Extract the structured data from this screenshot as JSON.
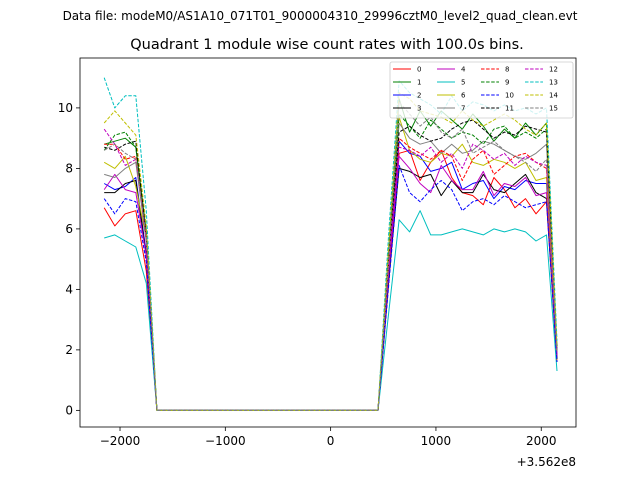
{
  "chart_data": {
    "type": "line",
    "suptitle": "Data file: modeM0/AS1A10_071T01_9000004310_29996cztM0_level2_quad_clean.evt",
    "title": "Quadrant 1 module wise count rates with 100.0s bins.",
    "xlabel": "",
    "ylabel": "",
    "x_offset_label": "+3.562e8",
    "xlim": [
      -2380,
      2330
    ],
    "ylim": [
      -0.55,
      11.65
    ],
    "xticks": [
      -2000,
      -1000,
      0,
      1000,
      2000
    ],
    "xtick_labels": [
      "−2000",
      "−1000",
      "0",
      "1000",
      "2000"
    ],
    "yticks": [
      0,
      2,
      4,
      6,
      8,
      10
    ],
    "ytick_labels": [
      "0",
      "2",
      "4",
      "6",
      "8",
      "10"
    ],
    "grid": false,
    "legend_position": "top-right",
    "x": [
      -2150,
      -2050,
      -1950,
      -1850,
      -1750,
      -1650,
      -1550,
      -1450,
      -1350,
      -1250,
      -1150,
      -1050,
      -950,
      -850,
      -750,
      -650,
      -550,
      -450,
      -350,
      -250,
      -150,
      -50,
      50,
      150,
      250,
      350,
      450,
      550,
      650,
      750,
      850,
      950,
      1050,
      1150,
      1250,
      1350,
      1450,
      1550,
      1650,
      1750,
      1850,
      1950,
      2050,
      2150
    ],
    "series": [
      {
        "name": "0",
        "color": "#ff0000",
        "dash": "solid",
        "values": [
          6.7,
          6.1,
          6.5,
          6.6,
          4.6,
          0,
          0,
          0,
          0,
          0,
          0,
          0,
          0,
          0,
          0,
          0,
          0,
          0,
          0,
          0,
          0,
          0,
          0,
          0,
          0,
          0,
          0,
          4.2,
          8.5,
          8.6,
          7.6,
          8.2,
          8.6,
          7.7,
          7.2,
          7.1,
          6.8,
          7.7,
          7.3,
          6.7,
          7.0,
          6.5,
          6.9,
          1.6
        ]
      },
      {
        "name": "1",
        "color": "#008000",
        "dash": "solid",
        "values": [
          8.8,
          8.9,
          9.0,
          8.7,
          5.8,
          0,
          0,
          0,
          0,
          0,
          0,
          0,
          0,
          0,
          0,
          0,
          0,
          0,
          0,
          0,
          0,
          0,
          0,
          0,
          0,
          0,
          0,
          5.2,
          10.3,
          9.2,
          9.9,
          9.4,
          9.9,
          9.6,
          9.3,
          9.8,
          9.4,
          8.9,
          9.3,
          9.0,
          9.5,
          9.1,
          9.5,
          2.0
        ]
      },
      {
        "name": "2",
        "color": "#0000ff",
        "dash": "solid",
        "values": [
          7.5,
          7.3,
          7.4,
          7.7,
          5.2,
          0,
          0,
          0,
          0,
          0,
          0,
          0,
          0,
          0,
          0,
          0,
          0,
          0,
          0,
          0,
          0,
          0,
          0,
          0,
          0,
          0,
          0,
          4.6,
          8.9,
          8.5,
          8.4,
          7.9,
          8.0,
          8.2,
          7.3,
          7.5,
          7.6,
          7.0,
          7.4,
          7.3,
          7.6,
          7.5,
          7.5,
          1.8
        ]
      },
      {
        "name": "3",
        "color": "#000000",
        "dash": "solid",
        "values": [
          7.2,
          7.2,
          7.5,
          7.6,
          5.1,
          0,
          0,
          0,
          0,
          0,
          0,
          0,
          0,
          0,
          0,
          0,
          0,
          0,
          0,
          0,
          0,
          0,
          0,
          0,
          0,
          0,
          0,
          4.3,
          8.0,
          7.9,
          7.7,
          7.8,
          7.1,
          7.6,
          7.2,
          7.2,
          7.8,
          7.3,
          7.2,
          7.5,
          7.8,
          7.2,
          7.0,
          1.7
        ]
      },
      {
        "name": "4",
        "color": "#bf00bf",
        "dash": "solid",
        "values": [
          7.3,
          7.8,
          7.3,
          7.2,
          5.1,
          0,
          0,
          0,
          0,
          0,
          0,
          0,
          0,
          0,
          0,
          0,
          0,
          0,
          0,
          0,
          0,
          0,
          0,
          0,
          0,
          0,
          0,
          4.5,
          8.4,
          8.0,
          7.5,
          7.2,
          8.1,
          7.6,
          7.3,
          7.3,
          7.9,
          7.1,
          7.5,
          7.4,
          7.7,
          7.1,
          7.2,
          1.8
        ]
      },
      {
        "name": "5",
        "color": "#00bfbf",
        "dash": "solid",
        "values": [
          5.7,
          5.8,
          5.6,
          5.4,
          4.2,
          0,
          0,
          0,
          0,
          0,
          0,
          0,
          0,
          0,
          0,
          0,
          0,
          0,
          0,
          0,
          0,
          0,
          0,
          0,
          0,
          0,
          0,
          3.2,
          6.3,
          5.9,
          6.6,
          5.8,
          5.8,
          5.9,
          6.0,
          5.9,
          5.8,
          6.0,
          5.9,
          6.0,
          5.9,
          5.6,
          5.8,
          1.3
        ]
      },
      {
        "name": "6",
        "color": "#bfbf00",
        "dash": "solid",
        "values": [
          8.2,
          8.0,
          8.4,
          7.4,
          5.7,
          0,
          0,
          0,
          0,
          0,
          0,
          0,
          0,
          0,
          0,
          0,
          0,
          0,
          0,
          0,
          0,
          0,
          0,
          0,
          0,
          0,
          0,
          4.9,
          9.7,
          8.6,
          8.3,
          8.2,
          8.5,
          8.4,
          8.8,
          8.2,
          8.1,
          8.3,
          8.2,
          8.0,
          8.2,
          7.6,
          7.7,
          1.9
        ]
      },
      {
        "name": "7",
        "color": "#808080",
        "dash": "solid",
        "values": [
          7.8,
          7.7,
          8.0,
          8.2,
          5.6,
          0,
          0,
          0,
          0,
          0,
          0,
          0,
          0,
          0,
          0,
          0,
          0,
          0,
          0,
          0,
          0,
          0,
          0,
          0,
          0,
          0,
          0,
          4.8,
          9.5,
          9.0,
          8.8,
          8.9,
          8.5,
          8.8,
          8.5,
          8.6,
          8.9,
          8.8,
          8.6,
          8.4,
          8.3,
          8.5,
          8.8,
          1.9
        ]
      },
      {
        "name": "8",
        "color": "#ff0000",
        "dash": "dashed",
        "values": [
          8.8,
          8.8,
          8.3,
          8.4,
          5.6,
          0,
          0,
          0,
          0,
          0,
          0,
          0,
          0,
          0,
          0,
          0,
          0,
          0,
          0,
          0,
          0,
          0,
          0,
          0,
          0,
          0,
          0,
          4.8,
          9.0,
          8.7,
          8.5,
          8.3,
          8.6,
          8.4,
          7.6,
          8.3,
          8.6,
          7.8,
          8.1,
          8.4,
          8.5,
          8.2,
          8.0,
          1.9
        ]
      },
      {
        "name": "9",
        "color": "#008000",
        "dash": "dashed",
        "values": [
          8.6,
          9.1,
          9.2,
          8.7,
          5.9,
          0,
          0,
          0,
          0,
          0,
          0,
          0,
          0,
          0,
          0,
          0,
          0,
          0,
          0,
          0,
          0,
          0,
          0,
          0,
          0,
          0,
          0,
          5.0,
          9.8,
          9.4,
          9.0,
          9.6,
          9.3,
          9.0,
          9.2,
          9.1,
          8.8,
          9.3,
          9.4,
          9.0,
          9.2,
          9.0,
          9.3,
          2.0
        ]
      },
      {
        "name": "10",
        "color": "#0000ff",
        "dash": "dashed",
        "values": [
          7.0,
          6.5,
          7.0,
          6.9,
          4.9,
          0,
          0,
          0,
          0,
          0,
          0,
          0,
          0,
          0,
          0,
          0,
          0,
          0,
          0,
          0,
          0,
          0,
          0,
          0,
          0,
          0,
          0,
          4.1,
          8.1,
          7.2,
          6.9,
          7.3,
          7.6,
          7.3,
          6.6,
          6.9,
          7.0,
          6.8,
          7.1,
          6.9,
          6.7,
          6.8,
          6.9,
          1.6
        ]
      },
      {
        "name": "11",
        "color": "#000000",
        "dash": "dashed",
        "values": [
          8.7,
          8.6,
          8.8,
          8.9,
          5.8,
          0,
          0,
          0,
          0,
          0,
          0,
          0,
          0,
          0,
          0,
          0,
          0,
          0,
          0,
          0,
          0,
          0,
          0,
          0,
          0,
          0,
          0,
          5.0,
          9.2,
          9.4,
          9.1,
          8.9,
          9.0,
          9.3,
          9.5,
          9.6,
          9.3,
          9.0,
          9.2,
          9.1,
          9.4,
          9.3,
          9.2,
          2.0
        ]
      },
      {
        "name": "12",
        "color": "#bf00bf",
        "dash": "dashed",
        "values": [
          9.3,
          8.8,
          8.1,
          8.3,
          5.7,
          0,
          0,
          0,
          0,
          0,
          0,
          0,
          0,
          0,
          0,
          0,
          0,
          0,
          0,
          0,
          0,
          0,
          0,
          0,
          0,
          0,
          0,
          4.9,
          8.7,
          8.6,
          8.4,
          8.7,
          8.2,
          8.5,
          8.0,
          8.8,
          8.6,
          8.3,
          8.5,
          8.1,
          8.4,
          8.2,
          8.1,
          1.9
        ]
      },
      {
        "name": "13",
        "color": "#00bfbf",
        "dash": "dashed",
        "values": [
          11.0,
          10.0,
          10.4,
          10.4,
          6.6,
          0,
          0,
          0,
          0,
          0,
          0,
          0,
          0,
          0,
          0,
          0,
          0,
          0,
          0,
          0,
          0,
          0,
          0,
          0,
          0,
          0,
          0,
          5.8,
          10.9,
          10.5,
          10.3,
          10.1,
          9.8,
          10.4,
          9.9,
          10.2,
          10.1,
          9.9,
          10.1,
          9.9,
          10.0,
          9.8,
          10.0,
          2.3
        ]
      },
      {
        "name": "14",
        "color": "#bfbf00",
        "dash": "dashed",
        "values": [
          9.5,
          9.9,
          9.5,
          9.1,
          6.1,
          0,
          0,
          0,
          0,
          0,
          0,
          0,
          0,
          0,
          0,
          0,
          0,
          0,
          0,
          0,
          0,
          0,
          0,
          0,
          0,
          0,
          0,
          5.4,
          10.5,
          10.3,
          9.9,
          9.8,
          9.7,
          9.5,
          9.9,
          9.6,
          9.4,
          9.6,
          9.8,
          9.6,
          9.3,
          9.1,
          9.5,
          2.1
        ]
      },
      {
        "name": "15",
        "color": "#808080",
        "dash": "dashed",
        "values": [
          8.6,
          8.8,
          8.5,
          8.3,
          5.7,
          0,
          0,
          0,
          0,
          0,
          0,
          0,
          0,
          0,
          0,
          0,
          0,
          0,
          0,
          0,
          0,
          0,
          0,
          0,
          0,
          0,
          0,
          4.9,
          10.2,
          9.8,
          9.4,
          9.7,
          9.2,
          9.0,
          9.3,
          8.5,
          8.7,
          8.9,
          8.6,
          8.4,
          8.2,
          7.9,
          8.3,
          1.9
        ]
      }
    ]
  }
}
